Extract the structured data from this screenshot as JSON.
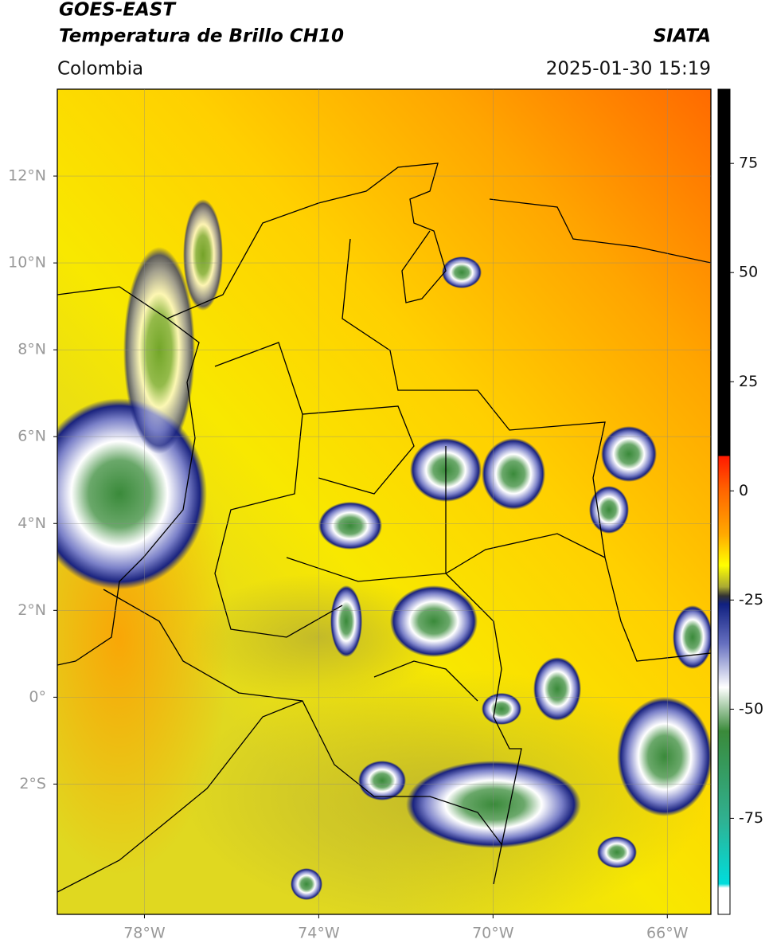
{
  "header": {
    "title": "GOES-EAST",
    "subtitle": "Temperatura de Brillo CH10",
    "source": "SIATA",
    "region": "Colombia",
    "datetime": "2025-01-30 15:19"
  },
  "map": {
    "xlim": [
      -80,
      -65
    ],
    "ylim": [
      -5,
      14
    ],
    "xticks": [
      {
        "value": -78,
        "label": "78°W"
      },
      {
        "value": -74,
        "label": "74°W"
      },
      {
        "value": -70,
        "label": "70°W"
      },
      {
        "value": -66,
        "label": "66°W"
      }
    ],
    "yticks": [
      {
        "value": 12,
        "label": "12°N"
      },
      {
        "value": 10,
        "label": "10°N"
      },
      {
        "value": 8,
        "label": "8°N"
      },
      {
        "value": 6,
        "label": "6°N"
      },
      {
        "value": 4,
        "label": "4°N"
      },
      {
        "value": 2,
        "label": "2°N"
      },
      {
        "value": 0,
        "label": "0°"
      },
      {
        "value": -2,
        "label": "2°S"
      }
    ],
    "grid": true
  },
  "colorbar": {
    "lim": [
      -97,
      92
    ],
    "ticks": [
      75,
      50,
      25,
      0,
      -25,
      -50,
      -75
    ]
  }
}
